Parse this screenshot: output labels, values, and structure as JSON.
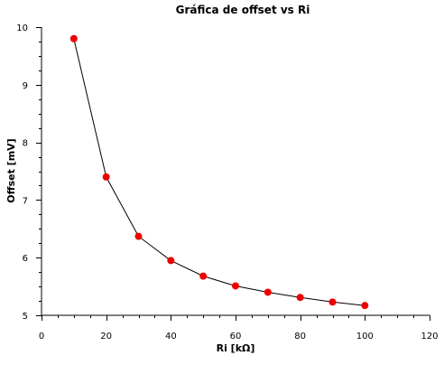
{
  "chart_data": {
    "type": "line",
    "title": "Gráfica de offset vs Ri",
    "xlabel": "Ri [kΩ]",
    "ylabel": "Offset [mV]",
    "xlim": [
      0,
      120
    ],
    "ylim": [
      5,
      10
    ],
    "x_ticks": [
      0,
      20,
      40,
      60,
      80,
      100,
      120
    ],
    "y_ticks": [
      5,
      6,
      7,
      8,
      9,
      10
    ],
    "x_minor_step": 5,
    "y_minor_step": 0.25,
    "grid": false,
    "series": [
      {
        "color": "#ee0000",
        "x": [
          10,
          20,
          30,
          40,
          50,
          60,
          70,
          80,
          90,
          100
        ],
        "y": [
          9.8,
          7.4,
          6.37,
          5.95,
          5.68,
          5.51,
          5.4,
          5.31,
          5.23,
          5.17
        ]
      }
    ]
  }
}
